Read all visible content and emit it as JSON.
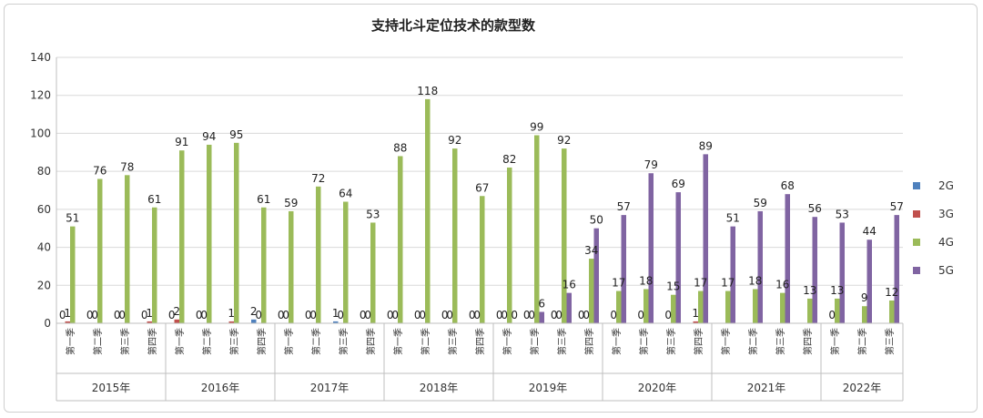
{
  "chart_data": {
    "type": "bar",
    "title": "支持北斗定位技术的款型数",
    "ylim": [
      0,
      140
    ],
    "yticks": [
      0,
      20,
      40,
      60,
      80,
      100,
      120,
      140
    ],
    "grid": true,
    "legend_position": "right",
    "years": [
      "2015年",
      "2016年",
      "2017年",
      "2018年",
      "2019年",
      "2020年",
      "2021年",
      "2022年"
    ],
    "quarters": [
      "第一季",
      "第二季",
      "第三季",
      "第四季"
    ],
    "categories": [
      "2015年 第一季",
      "2015年 第二季",
      "2015年 第三季",
      "2015年 第四季",
      "2016年 第一季",
      "2016年 第二季",
      "2016年 第三季",
      "2016年 第四季",
      "2017年 第一季",
      "2017年 第二季",
      "2017年 第三季",
      "2017年 第四季",
      "2018年 第一季",
      "2018年 第二季",
      "2018年 第三季",
      "2018年 第四季",
      "2019年 第一季",
      "2019年 第二季",
      "2019年 第三季",
      "2019年 第四季",
      "2020年 第一季",
      "2020年 第二季",
      "2020年 第三季",
      "2020年 第四季",
      "2021年 第一季",
      "2021年 第二季",
      "2021年 第三季",
      "2021年 第四季",
      "2022年 第一季",
      "2022年 第二季",
      "2022年 第三季"
    ],
    "series": [
      {
        "name": "2G",
        "color": "#4F81BD",
        "values": [
          0,
          0,
          0,
          0,
          0,
          0,
          0,
          2,
          0,
          0,
          1,
          0,
          0,
          0,
          0,
          0,
          0,
          0,
          0,
          0,
          null,
          null,
          null,
          null,
          null,
          null,
          null,
          null,
          null,
          null,
          null
        ],
        "labels": [
          "0",
          "0",
          "0",
          "0",
          "0",
          "0",
          "",
          "2",
          "0",
          "0",
          "1",
          "0",
          "0",
          "0",
          "0",
          "0",
          "0",
          "0",
          "0",
          "0",
          "",
          "",
          "",
          "",
          "",
          "",
          "",
          "",
          "",
          "",
          ""
        ]
      },
      {
        "name": "3G",
        "color": "#C0504D",
        "values": [
          1,
          0,
          0,
          1,
          2,
          0,
          1,
          0,
          0,
          0,
          0,
          0,
          0,
          0,
          0,
          0,
          0,
          0,
          0,
          0,
          0,
          0,
          0,
          1,
          null,
          null,
          null,
          null,
          0,
          null,
          null
        ],
        "labels": [
          "1",
          "0",
          "0",
          "1",
          "2",
          "0",
          "1",
          "0",
          "0",
          "0",
          "0",
          "0",
          "0",
          "0",
          "0",
          "0",
          "0",
          "0",
          "0",
          "0",
          "0",
          "0",
          "0",
          "1",
          "",
          "",
          "",
          "",
          "0",
          "",
          ""
        ]
      },
      {
        "name": "4G",
        "color": "#9BBB59",
        "values": [
          51,
          76,
          78,
          61,
          91,
          94,
          95,
          61,
          59,
          72,
          64,
          53,
          88,
          118,
          92,
          67,
          82,
          99,
          92,
          34,
          17,
          18,
          15,
          17,
          17,
          18,
          16,
          13,
          13,
          9,
          12
        ],
        "labels": [
          "51",
          "76",
          "78",
          "61",
          "91",
          "94",
          "95",
          "61",
          "59",
          "72",
          "64",
          "53",
          "88",
          "118",
          "92",
          "67",
          "82",
          "99",
          "92",
          "34",
          "17",
          "18",
          "15",
          "17",
          "17",
          "18",
          "16",
          "13",
          "13",
          "9",
          "12"
        ]
      },
      {
        "name": "5G",
        "color": "#8064A2",
        "values": [
          null,
          null,
          null,
          null,
          null,
          null,
          null,
          null,
          null,
          null,
          null,
          null,
          null,
          null,
          null,
          null,
          0,
          6,
          16,
          50,
          57,
          79,
          69,
          89,
          51,
          59,
          68,
          56,
          53,
          44,
          57
        ],
        "labels": [
          "",
          "",
          "",
          "",
          "",
          "",
          "",
          "",
          "",
          "",
          "",
          "",
          "",
          "",
          "",
          "",
          "0",
          "6",
          "16",
          "50",
          "57",
          "79",
          "69",
          "89",
          "51",
          "59",
          "68",
          "56",
          "53",
          "44",
          "57"
        ]
      }
    ]
  }
}
